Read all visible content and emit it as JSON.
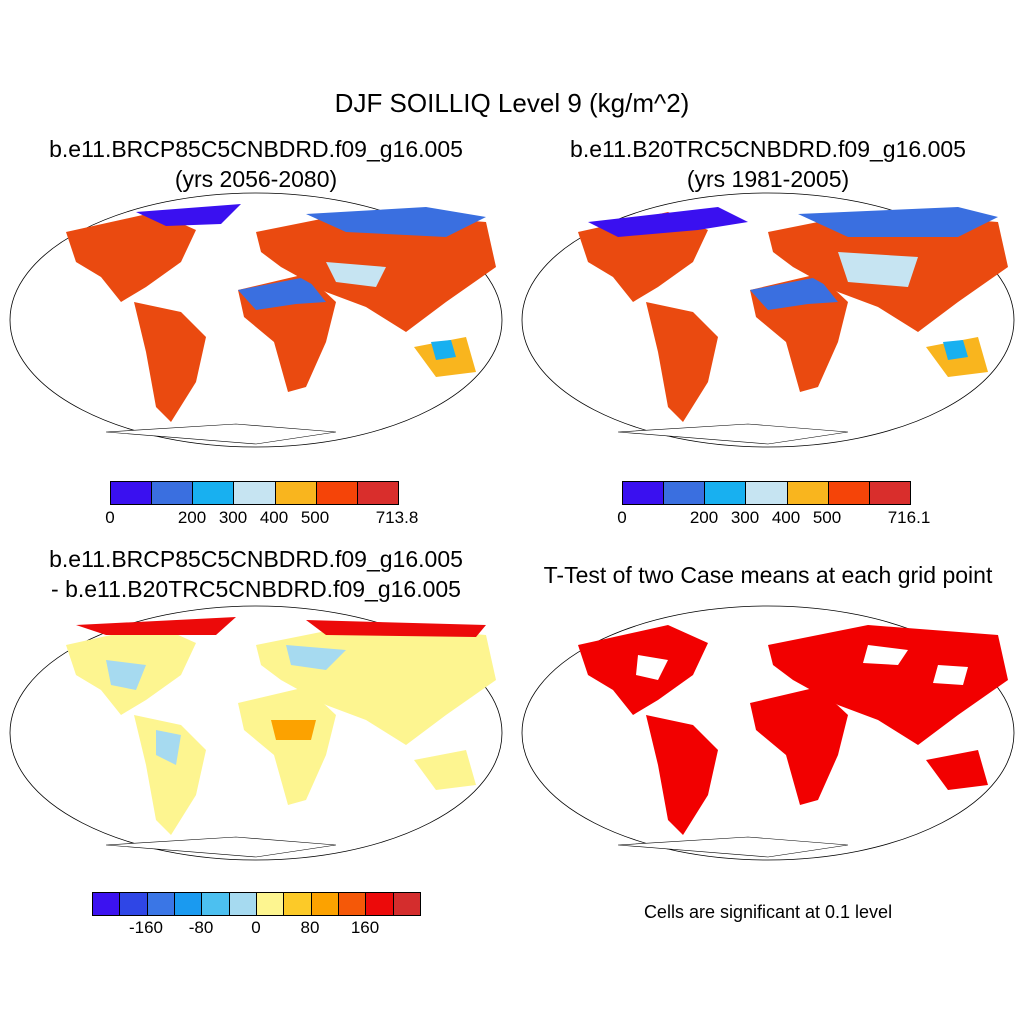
{
  "title": "DJF SOILLIQ Level 9 (kg/m^2)",
  "panels": {
    "case": {
      "title_line1": "b.e11.BRCP85C5CNBDRD.f09_g16.005",
      "title_line2": "(yrs 2056-2080)",
      "colorbar": {
        "colors": [
          "#3a10f0",
          "#3a6fe0",
          "#18b0f0",
          "#c6e4f2",
          "#f9b51e",
          "#f54408",
          "#d92e2c"
        ],
        "tick_labels": [
          "0",
          "200",
          "300",
          "400",
          "500",
          "713.8"
        ]
      }
    },
    "control": {
      "title_line1": "b.e11.B20TRC5CNBDRD.f09_g16.005",
      "title_line2": "(yrs 1981-2005)",
      "colorbar": {
        "colors": [
          "#3a10f0",
          "#3a6fe0",
          "#18b0f0",
          "#c6e4f2",
          "#f9b51e",
          "#f54408",
          "#d92e2c"
        ],
        "tick_labels": [
          "0",
          "200",
          "300",
          "400",
          "500",
          "716.1"
        ]
      }
    },
    "difference": {
      "title_line1": "b.e11.BRCP85C5CNBDRD.f09_g16.005",
      "title_line2": "- b.e11.B20TRC5CNBDRD.f09_g16.005",
      "colorbar": {
        "colors": [
          "#3c12f0",
          "#2f46e6",
          "#3a76e6",
          "#1a9af0",
          "#4cc0f0",
          "#a6daf0",
          "#fdf590",
          "#fcca28",
          "#fca200",
          "#f55808",
          "#ec0a0a",
          "#d42d2d"
        ],
        "tick_labels": [
          "-160",
          "-80",
          "0",
          "80",
          "160"
        ]
      }
    },
    "ttest": {
      "title": "T-Test of two Case means at each grid point",
      "note": "Cells are significant at 0.1 level",
      "sig_color": "#f20000"
    }
  }
}
